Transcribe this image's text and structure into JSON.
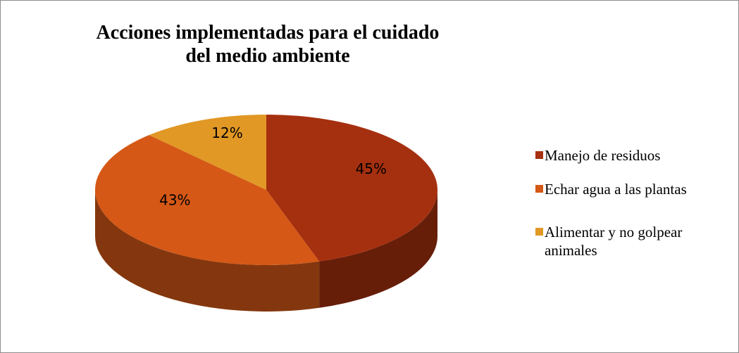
{
  "chart_data": {
    "type": "pie3d",
    "title": "Acciones implementadas para el cuidado del medio ambiente",
    "categories": [
      "Manejo de residuos",
      "Echar agua a las plantas",
      "Alimentar y no golpear animales"
    ],
    "values": [
      45,
      43,
      12
    ],
    "value_labels": [
      "45%",
      "43%",
      "12%"
    ],
    "colors": [
      "#A5300F",
      "#D55816",
      "#E19825"
    ],
    "legend": "right"
  }
}
